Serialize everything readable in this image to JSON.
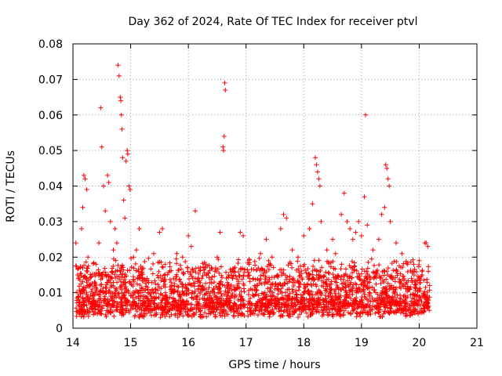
{
  "chart_data": {
    "type": "scatter",
    "title": "Day 362 of 2024, Rate Of TEC Index for receiver ptvl",
    "xlabel": "GPS time / hours",
    "ylabel": "ROTI / TECUs",
    "xlim": [
      14,
      21
    ],
    "ylim": [
      0,
      0.08
    ],
    "xticks": [
      14,
      15,
      16,
      17,
      18,
      19,
      20,
      21
    ],
    "yticks": [
      0,
      0.01,
      0.02,
      0.03,
      0.04,
      0.05,
      0.06,
      0.07,
      0.08
    ],
    "ytick_labels": [
      "0",
      "0.01",
      "0.02",
      "0.03",
      "0.04",
      "0.05",
      "0.06",
      "0.07",
      "0.08"
    ],
    "grid": true,
    "marker": "+",
    "series": [
      {
        "name": "ROTI",
        "color": "#ff0000",
        "points": [
          [
            14.05,
            0.024
          ],
          [
            14.08,
            0.015
          ],
          [
            14.1,
            0.008
          ],
          [
            14.12,
            0.005
          ],
          [
            14.15,
            0.028
          ],
          [
            14.17,
            0.034
          ],
          [
            14.19,
            0.043
          ],
          [
            14.21,
            0.042
          ],
          [
            14.24,
            0.039
          ],
          [
            14.26,
            0.02
          ],
          [
            14.3,
            0.012
          ],
          [
            14.35,
            0.009
          ],
          [
            14.4,
            0.018
          ],
          [
            14.45,
            0.024
          ],
          [
            14.48,
            0.062
          ],
          [
            14.5,
            0.051
          ],
          [
            14.53,
            0.04
          ],
          [
            14.56,
            0.033
          ],
          [
            14.6,
            0.043
          ],
          [
            14.62,
            0.041
          ],
          [
            14.65,
            0.03
          ],
          [
            14.7,
            0.022
          ],
          [
            14.73,
            0.028
          ],
          [
            14.76,
            0.024
          ],
          [
            14.78,
            0.074
          ],
          [
            14.8,
            0.071
          ],
          [
            14.82,
            0.065
          ],
          [
            14.83,
            0.064
          ],
          [
            14.84,
            0.06
          ],
          [
            14.85,
            0.056
          ],
          [
            14.86,
            0.048
          ],
          [
            14.88,
            0.036
          ],
          [
            14.9,
            0.031
          ],
          [
            14.92,
            0.047
          ],
          [
            14.94,
            0.05
          ],
          [
            14.95,
            0.049
          ],
          [
            14.97,
            0.04
          ],
          [
            14.99,
            0.039
          ],
          [
            15.05,
            0.02
          ],
          [
            15.1,
            0.022
          ],
          [
            15.15,
            0.028
          ],
          [
            15.2,
            0.014
          ],
          [
            15.3,
            0.01
          ],
          [
            15.4,
            0.021
          ],
          [
            15.5,
            0.027
          ],
          [
            15.55,
            0.028
          ],
          [
            15.6,
            0.018
          ],
          [
            15.7,
            0.011
          ],
          [
            15.8,
            0.021
          ],
          [
            15.9,
            0.02
          ],
          [
            16.0,
            0.026
          ],
          [
            16.05,
            0.023
          ],
          [
            16.12,
            0.033
          ],
          [
            16.2,
            0.012
          ],
          [
            16.3,
            0.018
          ],
          [
            16.4,
            0.017
          ],
          [
            16.5,
            0.02
          ],
          [
            16.55,
            0.027
          ],
          [
            16.6,
            0.051
          ],
          [
            16.61,
            0.05
          ],
          [
            16.62,
            0.054
          ],
          [
            16.63,
            0.069
          ],
          [
            16.64,
            0.067
          ],
          [
            16.7,
            0.015
          ],
          [
            16.8,
            0.011
          ],
          [
            16.9,
            0.027
          ],
          [
            16.95,
            0.026
          ],
          [
            17.05,
            0.018
          ],
          [
            17.15,
            0.012
          ],
          [
            17.25,
            0.021
          ],
          [
            17.35,
            0.025
          ],
          [
            17.45,
            0.02
          ],
          [
            17.55,
            0.015
          ],
          [
            17.6,
            0.028
          ],
          [
            17.65,
            0.032
          ],
          [
            17.7,
            0.031
          ],
          [
            17.8,
            0.022
          ],
          [
            17.9,
            0.02
          ],
          [
            18.0,
            0.026
          ],
          [
            18.1,
            0.028
          ],
          [
            18.15,
            0.035
          ],
          [
            18.2,
            0.048
          ],
          [
            18.22,
            0.046
          ],
          [
            18.24,
            0.044
          ],
          [
            18.26,
            0.042
          ],
          [
            18.28,
            0.04
          ],
          [
            18.3,
            0.03
          ],
          [
            18.4,
            0.022
          ],
          [
            18.5,
            0.025
          ],
          [
            18.55,
            0.021
          ],
          [
            18.65,
            0.032
          ],
          [
            18.7,
            0.038
          ],
          [
            18.75,
            0.03
          ],
          [
            18.8,
            0.028
          ],
          [
            18.85,
            0.025
          ],
          [
            18.9,
            0.027
          ],
          [
            18.95,
            0.03
          ],
          [
            19.0,
            0.026
          ],
          [
            19.05,
            0.037
          ],
          [
            19.07,
            0.06
          ],
          [
            19.1,
            0.029
          ],
          [
            19.2,
            0.022
          ],
          [
            19.3,
            0.025
          ],
          [
            19.35,
            0.032
          ],
          [
            19.4,
            0.034
          ],
          [
            19.42,
            0.046
          ],
          [
            19.44,
            0.045
          ],
          [
            19.46,
            0.042
          ],
          [
            19.48,
            0.04
          ],
          [
            19.5,
            0.03
          ],
          [
            19.6,
            0.024
          ],
          [
            19.7,
            0.021
          ],
          [
            19.8,
            0.018
          ],
          [
            19.9,
            0.016
          ],
          [
            20.0,
            0.019
          ],
          [
            20.05,
            0.015
          ],
          [
            20.1,
            0.024
          ],
          [
            20.12,
            0.024
          ],
          [
            20.15,
            0.023
          ],
          [
            20.18,
            0.012
          ]
        ],
        "dense_band": {
          "x_range": [
            14.05,
            20.18
          ],
          "gap": [
            16.98,
            17.02
          ],
          "y_range": [
            0.003,
            0.02
          ]
        }
      }
    ]
  }
}
